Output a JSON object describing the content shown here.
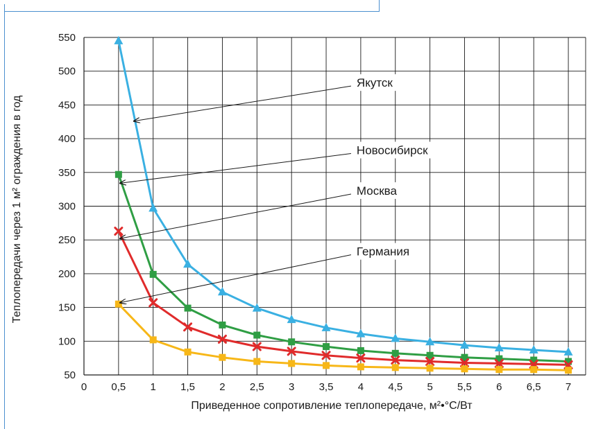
{
  "chart_data": {
    "type": "line",
    "title": "",
    "xlabel": "Приведенное сопротивление теплопередаче, м²•°С/Вт",
    "ylabel": "Теплопередачи через 1 м² ограждения в год",
    "xlim": [
      0,
      7.25
    ],
    "ylim": [
      50,
      550
    ],
    "x_ticks": [
      "0",
      "0,5",
      "1",
      "1,5",
      "2",
      "2,5",
      "3",
      "3,5",
      "4",
      "4,5",
      "5",
      "5,5",
      "6",
      "6,5",
      "7"
    ],
    "y_ticks": [
      "50",
      "100",
      "150",
      "200",
      "250",
      "300",
      "350",
      "400",
      "450",
      "500",
      "550"
    ],
    "grid": true,
    "x": [
      0.5,
      1,
      1.5,
      2,
      2.5,
      3,
      3.5,
      4,
      4.5,
      5,
      5.5,
      6,
      6.5,
      7
    ],
    "series": [
      {
        "name": "Якутск",
        "color": "#3ab0e2",
        "marker": "triangle",
        "label_x": 4.0,
        "label_y": 112,
        "values": [
          545,
          297,
          214,
          173,
          149,
          132,
          120,
          111,
          104,
          99,
          94,
          90,
          87,
          84
        ]
      },
      {
        "name": "Новосибирск",
        "color": "#2f9e44",
        "marker": "square",
        "label_x": 4.7,
        "label_y": 52,
        "values": [
          347,
          199,
          149,
          124,
          109,
          99,
          92,
          86,
          82,
          79,
          76,
          74,
          72,
          70
        ]
      },
      {
        "name": "Москва",
        "color": "#e02b2b",
        "marker": "x",
        "label_x": 4.7,
        "label_y": 20,
        "values": [
          263,
          157,
          121,
          103,
          92,
          85,
          79,
          75,
          72,
          70,
          68,
          67,
          66,
          65
        ]
      },
      {
        "name": "Германия",
        "color": "#f7b718",
        "marker": "square",
        "label_x": 4.7,
        "label_y": -8,
        "values": [
          155,
          102,
          84,
          76,
          70,
          67,
          64,
          62,
          61,
          60,
          59,
          58,
          58,
          57
        ]
      }
    ],
    "annotations": [
      {
        "text": "Якутск",
        "point_x": 0.72,
        "point_y": 426,
        "text_x": 3.9,
        "text_y": 478
      },
      {
        "text": "Новосибирск",
        "point_x": 0.52,
        "point_y": 334,
        "text_x": 3.9,
        "text_y": 378
      },
      {
        "text": "Москва",
        "point_x": 0.52,
        "point_y": 252,
        "text_x": 3.9,
        "text_y": 318
      },
      {
        "text": "Германия",
        "point_x": 0.52,
        "point_y": 157,
        "text_x": 3.9,
        "text_y": 228
      }
    ]
  }
}
